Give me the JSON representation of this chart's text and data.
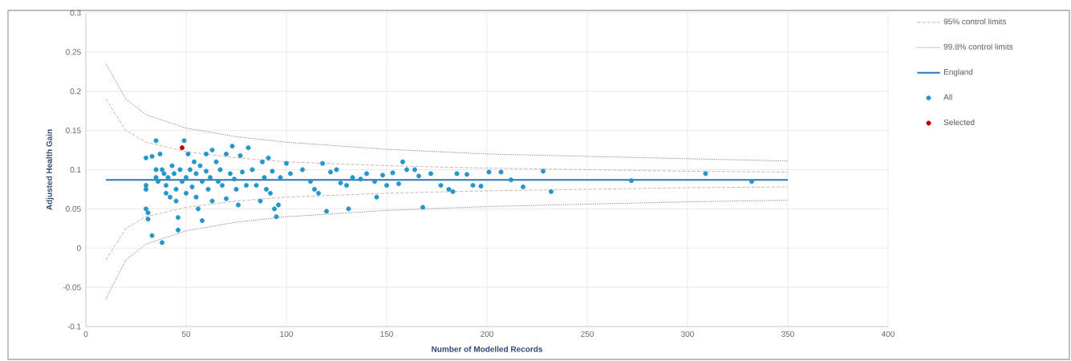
{
  "chart_data": {
    "type": "scatter",
    "xlabel": "Number of Modelled Records",
    "ylabel": "Adjusted Health Gain",
    "xlim": [
      0,
      400
    ],
    "xticks": [
      0,
      50,
      100,
      150,
      200,
      250,
      300,
      350,
      400
    ],
    "ylim": [
      -0.1,
      0.3
    ],
    "yticks": [
      -0.1,
      -0.05,
      0,
      0.05,
      0.1,
      0.15,
      0.2,
      0.25,
      0.3
    ],
    "grid": true,
    "legend": "right",
    "marker": "circle",
    "series": [
      {
        "name": "95% control limits",
        "type": "line",
        "line_style": "dashed",
        "marker": "none",
        "color": "#d0b8ac",
        "x": [
          10,
          20,
          30,
          50,
          75,
          100,
          150,
          200,
          250,
          300,
          350
        ],
        "values": [
          0.19,
          0.15,
          0.135,
          0.123,
          0.115,
          0.11,
          0.105,
          0.102,
          0.1,
          0.098,
          0.097
        ]
      },
      {
        "type": "line",
        "line_style": "dashed",
        "marker": "none",
        "color": "#d0b8ac",
        "x": [
          10,
          20,
          30,
          50,
          75,
          100,
          150,
          200,
          250,
          300,
          350
        ],
        "values": [
          -0.015,
          0.025,
          0.04,
          0.052,
          0.06,
          0.065,
          0.07,
          0.073,
          0.075,
          0.077,
          0.078
        ]
      },
      {
        "name": "99.8% control limits",
        "type": "line",
        "line_style": "dotted",
        "marker": "none",
        "color": "#8c8c8c",
        "x": [
          10,
          20,
          30,
          50,
          75,
          100,
          150,
          200,
          250,
          300,
          350
        ],
        "values": [
          0.235,
          0.19,
          0.17,
          0.153,
          0.142,
          0.135,
          0.126,
          0.12,
          0.117,
          0.114,
          0.111
        ]
      },
      {
        "type": "line",
        "line_style": "dotted",
        "marker": "none",
        "color": "#8c8c8c",
        "x": [
          10,
          20,
          30,
          50,
          75,
          100,
          150,
          200,
          250,
          300,
          350
        ],
        "values": [
          -0.065,
          -0.015,
          0.005,
          0.022,
          0.033,
          0.04,
          0.048,
          0.053,
          0.056,
          0.059,
          0.061
        ]
      },
      {
        "name": "England",
        "type": "line",
        "line_style": "solid",
        "marker": "none",
        "color": "#2e75b6",
        "x": [
          10,
          350
        ],
        "values": [
          0.087,
          0.087
        ]
      },
      {
        "name": "All",
        "color": "#2596c8",
        "x": [
          30,
          30,
          30,
          30,
          31,
          31,
          33,
          33,
          35,
          35,
          35,
          36,
          37,
          38,
          38,
          39,
          40,
          40,
          41,
          42,
          43,
          44,
          45,
          45,
          46,
          46,
          47,
          48,
          49,
          50,
          50,
          51,
          52,
          53,
          54,
          55,
          55,
          56,
          57,
          58,
          58,
          60,
          60,
          61,
          62,
          63,
          63,
          65,
          66,
          67,
          68,
          70,
          70,
          72,
          73,
          74,
          75,
          76,
          77,
          78,
          80,
          81,
          83,
          85,
          87,
          88,
          89,
          90,
          91,
          92,
          93,
          94,
          95,
          96,
          97,
          100,
          102,
          108,
          112,
          114,
          116,
          118,
          120,
          122,
          125,
          127,
          130,
          131,
          133,
          137,
          140,
          144,
          145,
          148,
          150,
          153,
          156,
          158,
          160,
          164,
          166,
          168,
          172,
          177,
          181,
          183,
          185,
          190,
          193,
          197,
          201,
          207,
          212,
          218,
          228,
          232,
          272,
          309,
          332
        ],
        "values": [
          0.115,
          0.08,
          0.075,
          0.05,
          0.045,
          0.037,
          0.117,
          0.016,
          0.137,
          0.1,
          0.09,
          0.085,
          0.12,
          0.1,
          0.007,
          0.095,
          0.08,
          0.07,
          0.09,
          0.065,
          0.105,
          0.095,
          0.075,
          0.06,
          0.039,
          0.023,
          0.1,
          0.085,
          0.137,
          0.09,
          0.07,
          0.12,
          0.1,
          0.078,
          0.11,
          0.095,
          0.065,
          0.05,
          0.105,
          0.085,
          0.035,
          0.12,
          0.098,
          0.075,
          0.09,
          0.125,
          0.06,
          0.11,
          0.085,
          0.1,
          0.08,
          0.12,
          0.063,
          0.095,
          0.13,
          0.088,
          0.075,
          0.055,
          0.118,
          0.097,
          0.08,
          0.128,
          0.1,
          0.08,
          0.06,
          0.11,
          0.09,
          0.075,
          0.115,
          0.07,
          0.098,
          0.05,
          0.04,
          0.055,
          0.09,
          0.108,
          0.095,
          0.1,
          0.085,
          0.075,
          0.07,
          0.108,
          0.047,
          0.097,
          0.1,
          0.083,
          0.08,
          0.05,
          0.09,
          0.088,
          0.095,
          0.085,
          0.065,
          0.093,
          0.08,
          0.096,
          0.082,
          0.11,
          0.1,
          0.1,
          0.092,
          0.052,
          0.095,
          0.08,
          0.075,
          0.072,
          0.095,
          0.094,
          0.08,
          0.079,
          0.097,
          0.097,
          0.087,
          0.078,
          0.098,
          0.072,
          0.086,
          0.095,
          0.085
        ]
      },
      {
        "name": "Selected",
        "color": "#c00000",
        "x": [
          48
        ],
        "values": [
          0.128
        ]
      }
    ]
  }
}
